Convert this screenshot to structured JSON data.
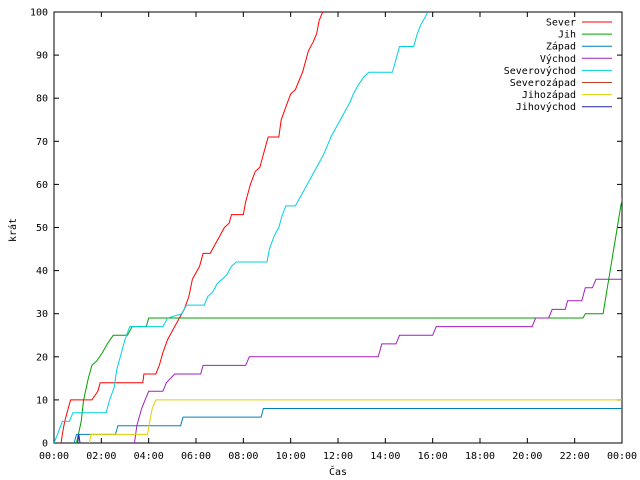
{
  "chart_data": {
    "type": "line",
    "title": "",
    "xlabel": "Čas",
    "ylabel": "krát",
    "xlim": [
      0,
      24
    ],
    "ylim": [
      0,
      100
    ],
    "x_ticks": [
      "00:00",
      "02:00",
      "04:00",
      "06:00",
      "08:00",
      "10:00",
      "12:00",
      "14:00",
      "16:00",
      "18:00",
      "20:00",
      "22:00",
      "00:00"
    ],
    "y_ticks": [
      0,
      10,
      20,
      30,
      40,
      50,
      60,
      70,
      80,
      90,
      100
    ],
    "grid": false,
    "legend_position": "top-right",
    "series": [
      {
        "name": "Sever",
        "color": "#ff0000",
        "points": [
          [
            0.3,
            0
          ],
          [
            0.35,
            2
          ],
          [
            0.45,
            5
          ],
          [
            0.6,
            8
          ],
          [
            0.7,
            10
          ],
          [
            1.6,
            10
          ],
          [
            1.85,
            12
          ],
          [
            1.95,
            14
          ],
          [
            3.75,
            14
          ],
          [
            3.8,
            16
          ],
          [
            4.3,
            16
          ],
          [
            4.45,
            18
          ],
          [
            4.6,
            21
          ],
          [
            4.8,
            24
          ],
          [
            5.0,
            26
          ],
          [
            5.3,
            29
          ],
          [
            5.5,
            31
          ],
          [
            5.7,
            34
          ],
          [
            5.85,
            38
          ],
          [
            6.15,
            41
          ],
          [
            6.3,
            44
          ],
          [
            6.6,
            44
          ],
          [
            6.8,
            46
          ],
          [
            7.0,
            48
          ],
          [
            7.2,
            50
          ],
          [
            7.4,
            51
          ],
          [
            7.5,
            53
          ],
          [
            8.0,
            53
          ],
          [
            8.1,
            56
          ],
          [
            8.3,
            60
          ],
          [
            8.5,
            63
          ],
          [
            8.7,
            64
          ],
          [
            8.85,
            67
          ],
          [
            9.05,
            71
          ],
          [
            9.5,
            71
          ],
          [
            9.6,
            75
          ],
          [
            9.8,
            78
          ],
          [
            10.0,
            81
          ],
          [
            10.2,
            82
          ],
          [
            10.35,
            84
          ],
          [
            10.5,
            86
          ],
          [
            10.65,
            89
          ],
          [
            10.75,
            91
          ],
          [
            10.95,
            93
          ],
          [
            11.1,
            95
          ],
          [
            11.2,
            98
          ],
          [
            11.35,
            100
          ]
        ]
      },
      {
        "name": "Jih",
        "color": "#00a000",
        "points": [
          [
            0.95,
            0
          ],
          [
            1.15,
            5
          ],
          [
            1.25,
            10
          ],
          [
            1.45,
            15
          ],
          [
            1.6,
            18
          ],
          [
            1.8,
            19
          ],
          [
            2.05,
            21
          ],
          [
            2.25,
            23
          ],
          [
            2.5,
            25
          ],
          [
            3.1,
            25
          ],
          [
            3.3,
            27
          ],
          [
            3.9,
            27
          ],
          [
            4.0,
            29
          ],
          [
            22.35,
            29
          ],
          [
            22.45,
            30
          ],
          [
            23.2,
            30
          ],
          [
            23.35,
            35
          ],
          [
            23.5,
            40
          ],
          [
            23.65,
            45
          ],
          [
            23.8,
            50
          ],
          [
            23.95,
            55
          ],
          [
            24.1,
            59
          ],
          [
            24.5,
            59
          ]
        ]
      },
      {
        "name": "Západ",
        "color": "#0080c0",
        "points": [
          [
            0.85,
            0
          ],
          [
            0.95,
            2
          ],
          [
            2.6,
            2
          ],
          [
            2.7,
            4
          ],
          [
            5.35,
            4
          ],
          [
            5.45,
            6
          ],
          [
            8.75,
            6
          ],
          [
            8.85,
            8
          ],
          [
            24.5,
            8
          ]
        ]
      },
      {
        "name": "Východ",
        "color": "#a020c0",
        "points": [
          [
            3.4,
            0
          ],
          [
            3.5,
            4
          ],
          [
            3.7,
            8
          ],
          [
            3.85,
            10
          ],
          [
            4.0,
            12
          ],
          [
            4.6,
            12
          ],
          [
            4.75,
            14
          ],
          [
            5.1,
            16
          ],
          [
            6.2,
            16
          ],
          [
            6.3,
            18
          ],
          [
            8.1,
            18
          ],
          [
            8.25,
            20
          ],
          [
            13.7,
            20
          ],
          [
            13.85,
            23
          ],
          [
            14.45,
            23
          ],
          [
            14.6,
            25
          ],
          [
            16.0,
            25
          ],
          [
            16.15,
            27
          ],
          [
            20.2,
            27
          ],
          [
            20.35,
            29
          ],
          [
            20.9,
            29
          ],
          [
            21.05,
            31
          ],
          [
            21.6,
            31
          ],
          [
            21.7,
            33
          ],
          [
            22.3,
            33
          ],
          [
            22.45,
            36
          ],
          [
            22.75,
            36
          ],
          [
            22.9,
            38
          ],
          [
            24.5,
            38
          ]
        ]
      },
      {
        "name": "Severovýchod",
        "color": "#00d0e0",
        "points": [
          [
            0.0,
            0
          ],
          [
            0.15,
            2
          ],
          [
            0.35,
            5
          ],
          [
            0.65,
            5
          ],
          [
            0.8,
            7
          ],
          [
            2.2,
            7
          ],
          [
            2.35,
            10
          ],
          [
            2.55,
            13
          ],
          [
            2.65,
            17
          ],
          [
            2.8,
            20
          ],
          [
            3.0,
            24
          ],
          [
            3.2,
            27
          ],
          [
            4.6,
            27
          ],
          [
            4.8,
            29
          ],
          [
            5.4,
            30
          ],
          [
            5.6,
            32
          ],
          [
            6.35,
            32
          ],
          [
            6.5,
            34
          ],
          [
            6.7,
            35
          ],
          [
            6.9,
            37
          ],
          [
            7.1,
            38
          ],
          [
            7.3,
            39
          ],
          [
            7.5,
            41
          ],
          [
            7.7,
            42
          ],
          [
            9.0,
            42
          ],
          [
            9.1,
            45
          ],
          [
            9.3,
            48
          ],
          [
            9.5,
            50
          ],
          [
            9.65,
            53
          ],
          [
            9.8,
            55
          ],
          [
            10.2,
            55
          ],
          [
            10.4,
            57
          ],
          [
            10.6,
            59
          ],
          [
            10.8,
            61
          ],
          [
            11.0,
            63
          ],
          [
            11.2,
            65
          ],
          [
            11.4,
            67
          ],
          [
            11.55,
            69
          ],
          [
            11.7,
            71
          ],
          [
            11.9,
            73
          ],
          [
            12.1,
            75
          ],
          [
            12.3,
            77
          ],
          [
            12.5,
            79
          ],
          [
            12.65,
            81
          ],
          [
            12.85,
            83
          ],
          [
            13.1,
            85
          ],
          [
            13.3,
            86
          ],
          [
            14.3,
            86
          ],
          [
            14.45,
            89
          ],
          [
            14.6,
            92
          ],
          [
            15.2,
            92
          ],
          [
            15.35,
            95
          ],
          [
            15.5,
            97
          ],
          [
            15.7,
            99
          ],
          [
            15.8,
            100
          ]
        ]
      },
      {
        "name": "Severozápad",
        "color": "#c04020",
        "points": []
      },
      {
        "name": "Jihozápad",
        "color": "#e0d000",
        "points": [
          [
            1.5,
            0
          ],
          [
            1.55,
            2
          ],
          [
            3.95,
            2
          ],
          [
            4.05,
            5
          ],
          [
            4.15,
            8
          ],
          [
            4.3,
            10
          ],
          [
            24.5,
            10
          ]
        ]
      },
      {
        "name": "Jihovýchod",
        "color": "#2020a0",
        "points": [
          [
            1.0,
            0
          ],
          [
            1.05,
            2
          ],
          [
            1.1,
            0
          ]
        ]
      }
    ]
  }
}
